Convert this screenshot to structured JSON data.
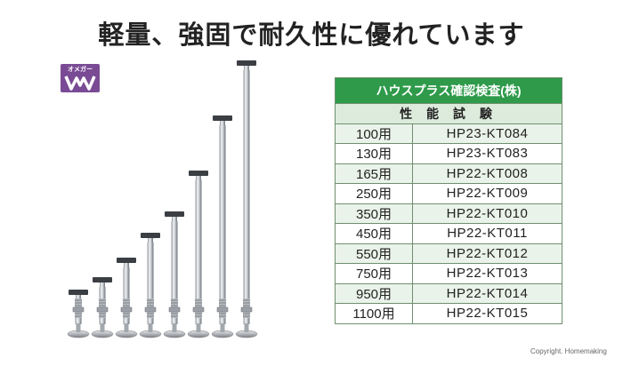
{
  "headline": "軽量、強固で耐久性に優れています",
  "logo": {
    "text": "オメガー"
  },
  "table": {
    "title": "ハウスプラス確認検査(株)",
    "subheader": "性 能 試 験",
    "rows": [
      {
        "length": "100用",
        "code": "HP23-KT084"
      },
      {
        "length": "130用",
        "code": "HP23-KT083"
      },
      {
        "length": "165用",
        "code": "HP22-KT008"
      },
      {
        "length": "250用",
        "code": "HP22-KT009"
      },
      {
        "length": "350用",
        "code": "HP22-KT010"
      },
      {
        "length": "450用",
        "code": "HP22-KT011"
      },
      {
        "length": "550用",
        "code": "HP22-KT012"
      },
      {
        "length": "750用",
        "code": "HP22-KT013"
      },
      {
        "length": "950用",
        "code": "HP22-KT014"
      },
      {
        "length": "1100用",
        "code": "HP22-KT015"
      }
    ]
  },
  "copyright": "Copyright. Homemaking",
  "colors": {
    "header_green": "#2e9a4a",
    "logo_purple": "#7a4b95"
  }
}
